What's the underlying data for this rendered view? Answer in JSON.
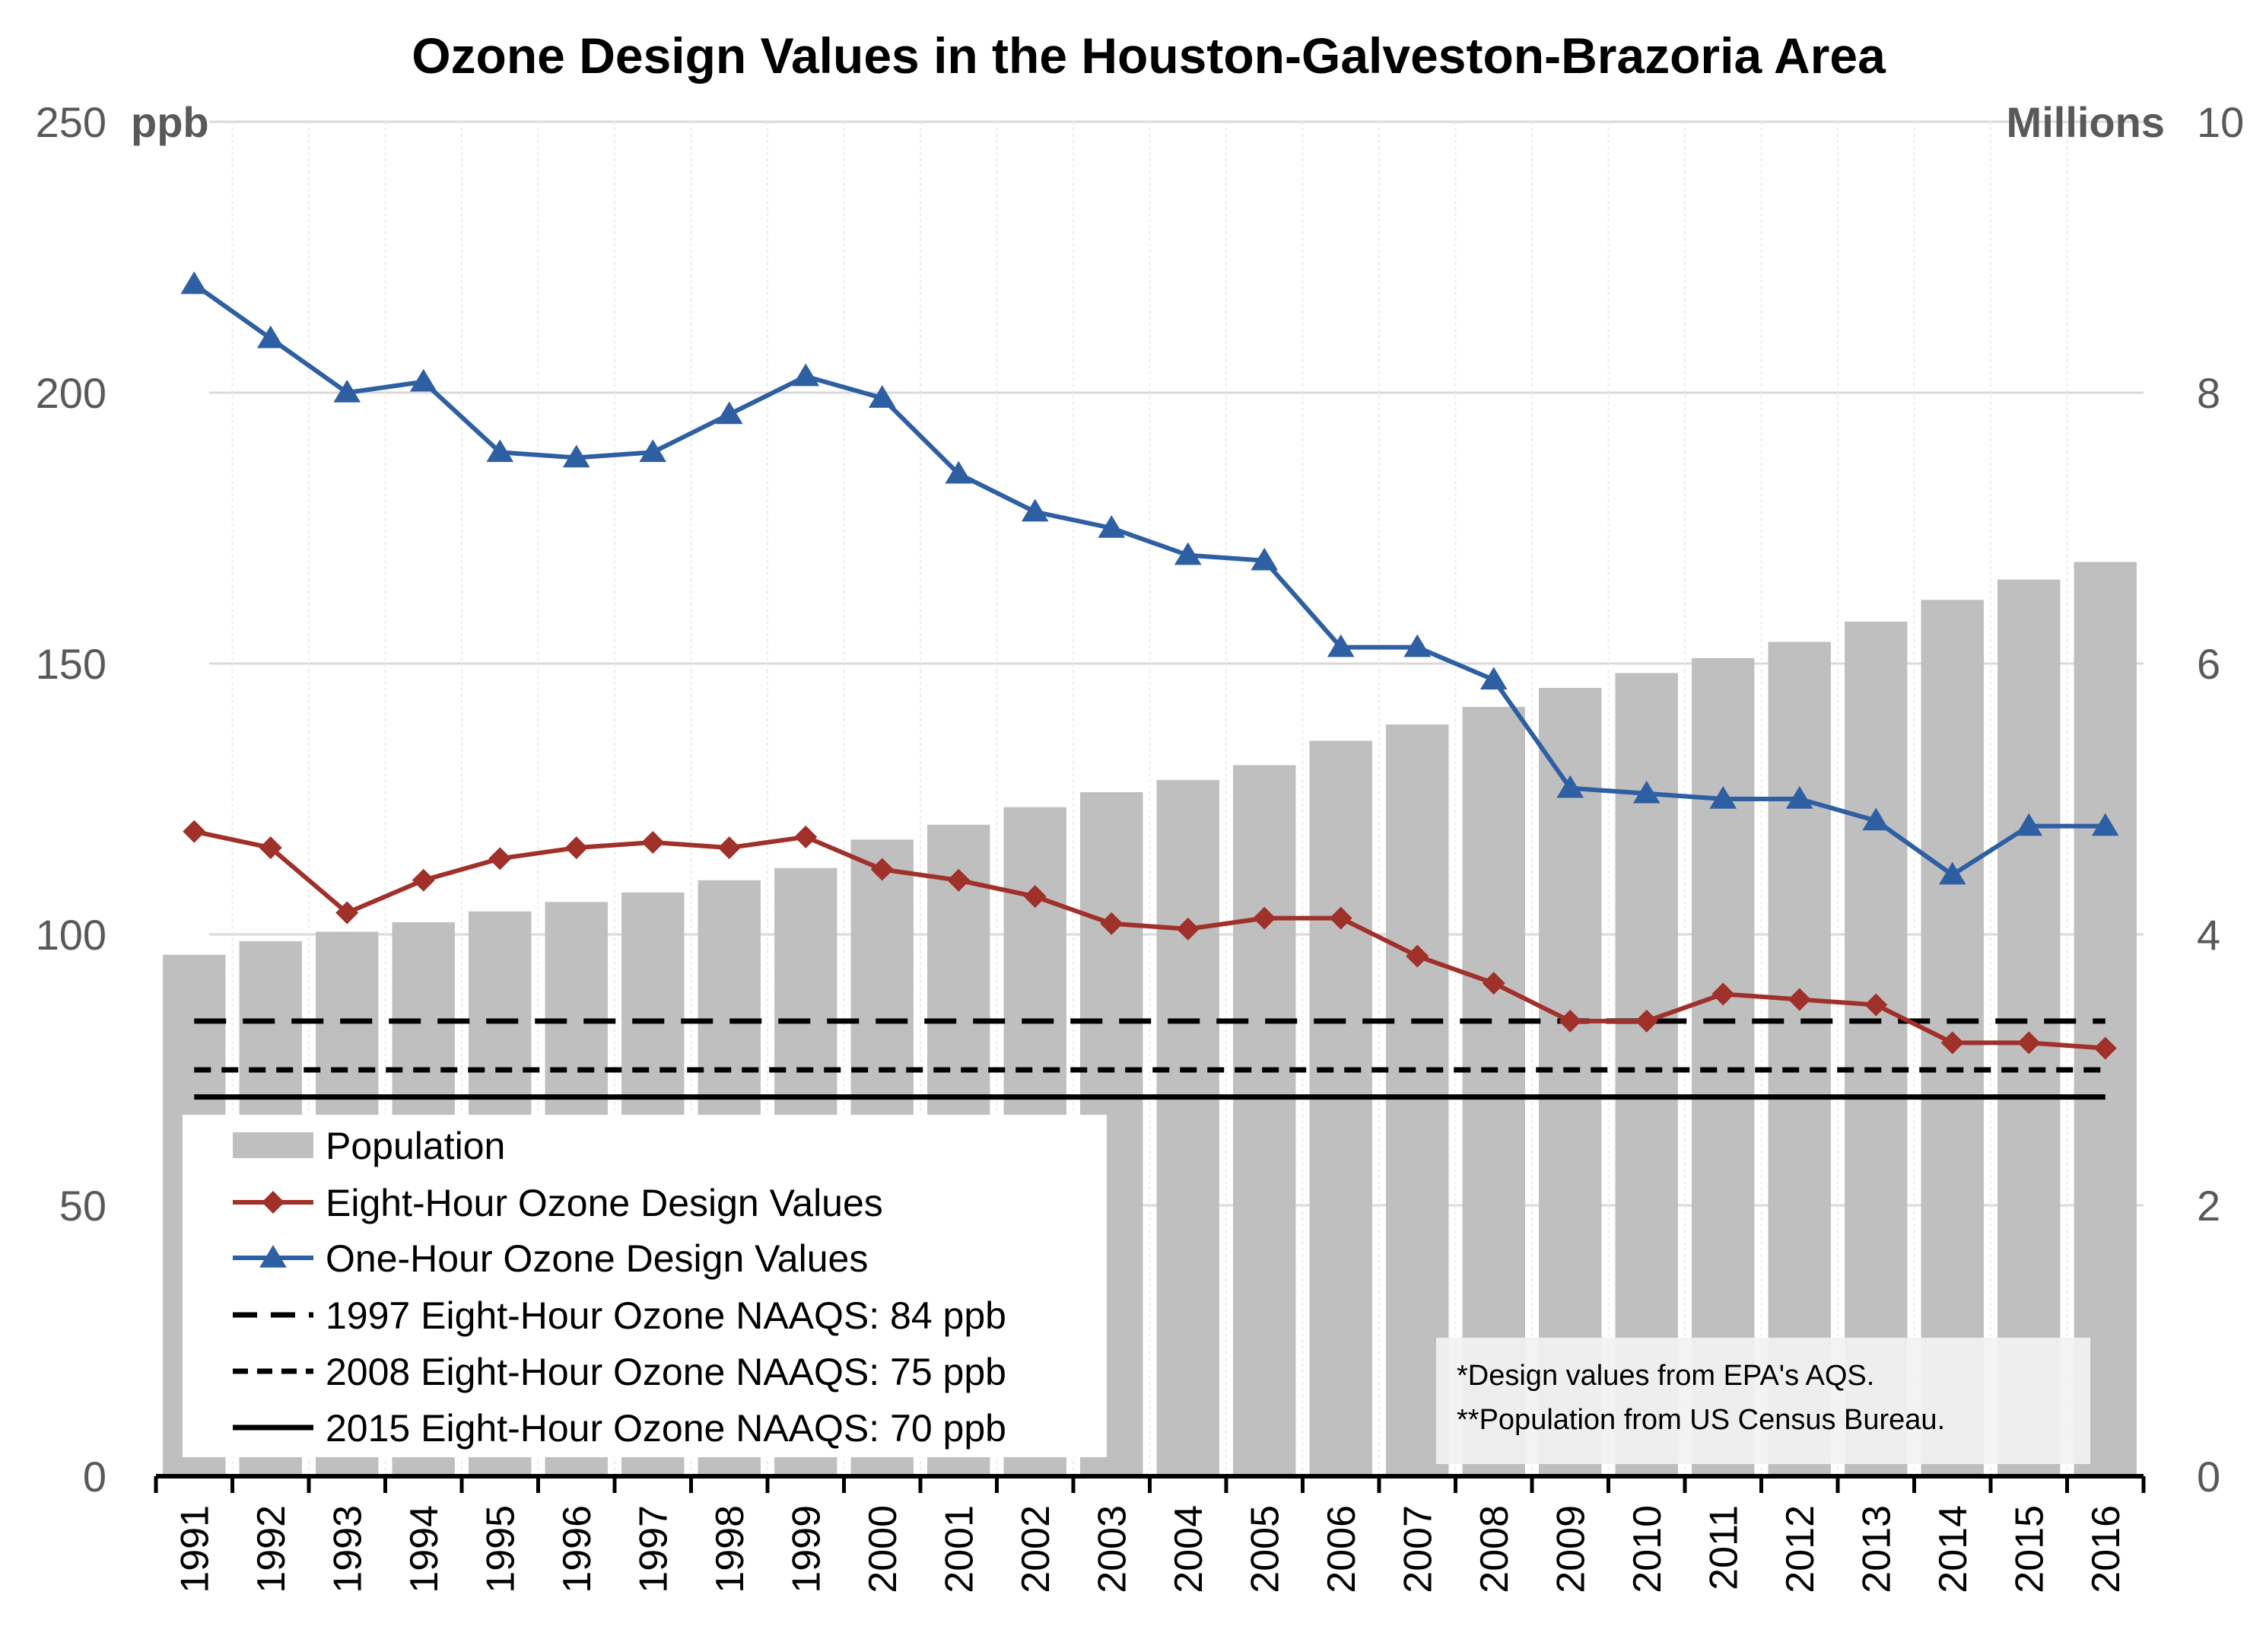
{
  "chart_data": {
    "type": "bar",
    "title": "Ozone Design Values in the Houston-Galveston-Brazoria Area",
    "left_axis": {
      "unit_label": "ppb",
      "ylim": [
        0,
        250
      ],
      "ticks": [
        "0",
        "50",
        "100",
        "150",
        "200",
        "250"
      ]
    },
    "right_axis": {
      "unit_label": "Millions",
      "ylim": [
        0,
        10
      ],
      "ticks": [
        "0",
        "2",
        "4",
        "6",
        "8",
        "10"
      ]
    },
    "categories": [
      "1991",
      "1992",
      "1993",
      "1994",
      "1995",
      "1996",
      "1997",
      "1998",
      "1999",
      "2000",
      "2001",
      "2002",
      "2003",
      "2004",
      "2005",
      "2006",
      "2007",
      "2008",
      "2009",
      "2010",
      "2011",
      "2012",
      "2013",
      "2014",
      "2015",
      "2016"
    ],
    "series": [
      {
        "name": "Population",
        "type": "bar",
        "axis": "right",
        "color": "#bfbfbf",
        "values": [
          3.85,
          3.95,
          4.02,
          4.09,
          4.17,
          4.24,
          4.31,
          4.4,
          4.49,
          4.7,
          4.81,
          4.94,
          5.05,
          5.14,
          5.25,
          5.43,
          5.55,
          5.68,
          5.82,
          5.93,
          6.04,
          6.16,
          6.31,
          6.47,
          6.62,
          6.75
        ]
      },
      {
        "name": "Eight-Hour Ozone Design Values",
        "type": "line",
        "marker": "diamond",
        "axis": "left",
        "color": "#a0302a",
        "values": [
          119,
          116,
          104,
          110,
          114,
          116,
          117,
          116,
          118,
          112,
          110,
          107,
          102,
          101,
          103,
          103,
          96,
          91,
          84,
          84,
          89,
          88,
          87,
          80,
          80,
          79
        ]
      },
      {
        "name": "One-Hour Ozone Design Values",
        "type": "line",
        "marker": "triangle",
        "axis": "left",
        "color": "#2e5fa3",
        "values": [
          220,
          210,
          200,
          202,
          189,
          188,
          189,
          196,
          203,
          199,
          185,
          178,
          175,
          170,
          169,
          153,
          153,
          147,
          127,
          126,
          125,
          125,
          121,
          111,
          120,
          120
        ]
      },
      {
        "name": "1997 Eight-Hour Ozone NAAQS: 84 ppb",
        "type": "hline",
        "style": "dashed-long",
        "axis": "left",
        "color": "#000000",
        "value": 84
      },
      {
        "name": "2008 Eight-Hour Ozone NAAQS: 75 ppb",
        "type": "hline",
        "style": "dashed-short",
        "axis": "left",
        "color": "#000000",
        "value": 75
      },
      {
        "name": "2015 Eight-Hour Ozone NAAQS: 70 ppb",
        "type": "hline",
        "style": "solid",
        "axis": "left",
        "color": "#000000",
        "value": 70
      }
    ],
    "notes": [
      "*Design values from EPA's AQS.",
      "**Population from US Census Bureau."
    ],
    "legend_position": "bottom-left",
    "grid": true
  }
}
